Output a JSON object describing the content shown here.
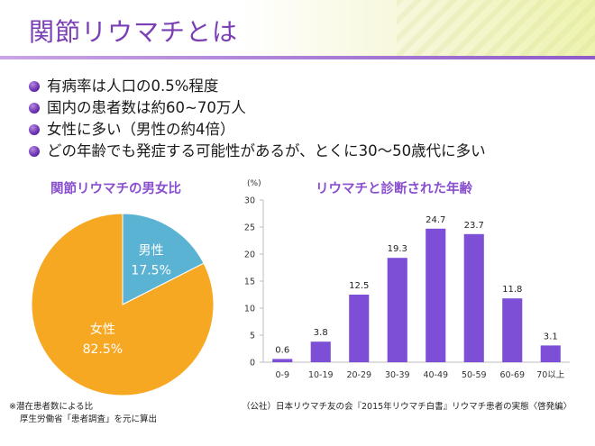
{
  "header": {
    "title": "関節リウマチとは"
  },
  "bullets": [
    "有病率は人口の0.5%程度",
    "国内の患者数は約60~70万人",
    "女性に多い（男性の約4倍）",
    "どの年齢でも発症する可能性があるが、とくに30～50歳代に多い"
  ],
  "colors": {
    "accent": "#7a3fb5",
    "pie_female": "#f7a823",
    "pie_male": "#5bb3d3",
    "bar": "#7c4fd6"
  },
  "chart_data": [
    {
      "type": "pie",
      "title": "関節リウマチの男女比",
      "slices": [
        {
          "label": "男性",
          "value": 17.5,
          "display": "17.5%"
        },
        {
          "label": "女性",
          "value": 82.5,
          "display": "82.5%"
        }
      ]
    },
    {
      "type": "bar",
      "title": "リウマチと診断された年齢",
      "ylabel": "(%)",
      "categories": [
        "0-9",
        "10-19",
        "20-29",
        "30-39",
        "40-49",
        "50-59",
        "60-69",
        "70以上"
      ],
      "values": [
        0.6,
        3.8,
        12.5,
        19.3,
        24.7,
        23.7,
        11.8,
        3.1
      ],
      "ylim": [
        0,
        30
      ],
      "yticks": [
        0,
        5,
        10,
        15,
        20,
        25,
        30
      ],
      "grid": false
    }
  ],
  "notes": {
    "left_1": "※潜在患者数による比",
    "left_2": "厚生労働省「患者調査」を元に算出",
    "right": "（公社）日本リウマチ友の会『2015年リウマチ白書』リウマチ患者の実態〈啓発編〉"
  }
}
